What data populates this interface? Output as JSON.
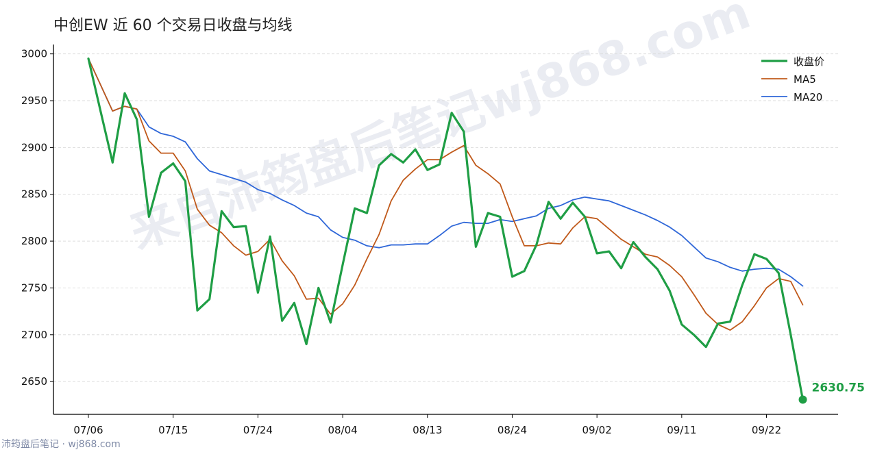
{
  "title": "中创EW 近 60 个交易日收盘与均线",
  "watermark": "来自沛筠盘后笔记wj868.com",
  "footer": "沛筠盘后笔记 · wj868.com",
  "colors": {
    "close": "#1f9e45",
    "ma5": "#c0591a",
    "ma20": "#2f67d8",
    "grid": "#dddddd",
    "axis": "#000000"
  },
  "chart_data": {
    "type": "line",
    "title": "中创EW 近 60 个交易日收盘与均线",
    "xlabel": "",
    "ylabel": "",
    "ylim": [
      2615,
      3010
    ],
    "yticks": [
      2650,
      2700,
      2750,
      2800,
      2850,
      2900,
      2950,
      3000
    ],
    "xtick_labels": [
      "07/06",
      "07/15",
      "07/24",
      "08/04",
      "08/13",
      "08/24",
      "09/02",
      "09/11",
      "09/22"
    ],
    "xtick_indices": [
      0,
      7,
      14,
      21,
      28,
      35,
      42,
      49,
      56
    ],
    "grid": "horizontal dashed",
    "legend_position": "top-right",
    "last_value_label": "2630.75",
    "series": [
      {
        "name": "收盘价",
        "key": "close",
        "values": [
          2995,
          2939,
          2884,
          2958,
          2930,
          2826,
          2873,
          2883,
          2864,
          2726,
          2738,
          2832,
          2815,
          2816,
          2745,
          2805,
          2715,
          2734,
          2690,
          2750,
          2713,
          2775,
          2835,
          2830,
          2881,
          2893,
          2884,
          2898,
          2876,
          2882,
          2937,
          2917,
          2794,
          2830,
          2826,
          2762,
          2768,
          2796,
          2842,
          2824,
          2841,
          2826,
          2787,
          2789,
          2771,
          2799,
          2783,
          2770,
          2747,
          2711,
          2700,
          2687,
          2712,
          2714,
          2753,
          2786,
          2781,
          2766,
          2700,
          2630.75
        ]
      },
      {
        "name": "MA5",
        "key": "ma5",
        "values": [
          2995,
          2967,
          2939,
          2944,
          2941,
          2907,
          2894,
          2894,
          2875,
          2834,
          2817,
          2809,
          2795,
          2785,
          2789,
          2802,
          2779,
          2763,
          2738,
          2739,
          2722,
          2733,
          2753,
          2781,
          2807,
          2843,
          2865,
          2877,
          2887,
          2887,
          2895,
          2902,
          2881,
          2872,
          2861,
          2826,
          2795,
          2795,
          2798,
          2797,
          2814,
          2826,
          2824,
          2813,
          2802,
          2794,
          2786,
          2783,
          2774,
          2762,
          2743,
          2723,
          2711,
          2705,
          2714,
          2731,
          2750,
          2760,
          2757,
          2732
        ]
      },
      {
        "name": "MA20",
        "key": "ma20",
        "values": [
          2995,
          2967,
          2939,
          2944,
          2941,
          2922,
          2915,
          2912,
          2906,
          2888,
          2875,
          2871,
          2867,
          2863,
          2855,
          2851,
          2844,
          2838,
          2830,
          2826,
          2812,
          2804,
          2801,
          2795,
          2793,
          2796,
          2796,
          2797,
          2797,
          2806,
          2816,
          2820,
          2819,
          2819,
          2823,
          2821,
          2824,
          2827,
          2835,
          2838,
          2844,
          2847,
          2845,
          2843,
          2838,
          2833,
          2828,
          2822,
          2815,
          2806,
          2794,
          2782,
          2778,
          2772,
          2768,
          2770,
          2771,
          2770,
          2762,
          2752
        ]
      }
    ]
  }
}
